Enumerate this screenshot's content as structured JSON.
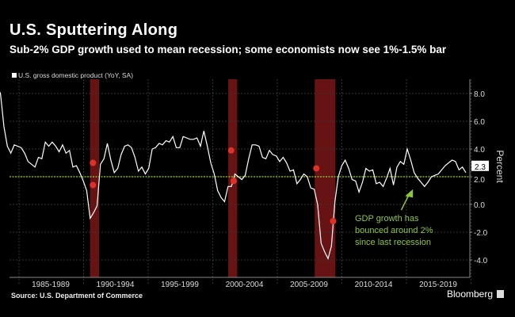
{
  "header": {
    "title": "U.S. Sputtering Along",
    "subtitle": "Sub-2% GDP growth used to mean recession; some economists now see 1%-1.5% bar"
  },
  "footer": {
    "source": "Source: U.S. Department of Commerce",
    "brand": "Bloomberg"
  },
  "colors": {
    "line": "#ffffff",
    "recession": "#8b1a1a",
    "threshold": "#9acd32",
    "annotation": "#8fc63f",
    "marker": "#e0302a"
  },
  "chart_data": {
    "type": "line",
    "legend": "U.S. gross domestic product (YoY, SA)",
    "ylabel": "Percent",
    "ylim": [
      -5,
      9.5
    ],
    "xlim": [
      1983.0,
      2020.9
    ],
    "y_ticks": [
      {
        "v": 8,
        "label": "8.0"
      },
      {
        "v": 6,
        "label": "6.0"
      },
      {
        "v": 4,
        "label": "4.0"
      },
      {
        "v": 2,
        "label": "2.0"
      },
      {
        "v": 0,
        "label": "0.0"
      },
      {
        "v": -2,
        "label": "-2.0"
      },
      {
        "v": -4,
        "label": "-4.0"
      }
    ],
    "x_ticks": [
      "1985-1989",
      "1990-1994",
      "1995-1999",
      "2000-2004",
      "2005-2009",
      "2010-2014",
      "2015-2019"
    ],
    "x_start": 1983.3,
    "x_end": 2019.6,
    "values": [
      8.5,
      8.0,
      5.6,
      4.2,
      3.7,
      4.3,
      4.2,
      4.1,
      3.7,
      3.1,
      2.9,
      2.7,
      3.4,
      3.3,
      4.5,
      4.2,
      4.5,
      4.2,
      3.8,
      4.3,
      3.7,
      3.9,
      2.7,
      2.8,
      2.3,
      1.7,
      1.0,
      -1.0,
      -0.6,
      -0.1,
      2.9,
      3.3,
      4.4,
      3.2,
      2.3,
      2.6,
      3.6,
      4.2,
      4.3,
      4.1,
      3.4,
      2.4,
      2.7,
      2.2,
      2.6,
      4.0,
      4.1,
      4.4,
      4.3,
      4.6,
      4.5,
      4.9,
      4.1,
      4.1,
      4.9,
      4.8,
      4.7,
      4.7,
      4.8,
      4.2,
      5.3,
      4.2,
      3.0,
      2.2,
      1.0,
      0.5,
      0.2,
      1.3,
      1.3,
      2.2,
      2.0,
      1.8,
      2.1,
      3.3,
      4.3,
      4.3,
      4.2,
      3.4,
      3.3,
      3.9,
      3.6,
      3.5,
      3.1,
      3.4,
      3.0,
      2.4,
      2.5,
      1.5,
      1.8,
      2.2,
      2.0,
      1.2,
      1.1,
      0.0,
      -2.8,
      -3.4,
      -3.9,
      -3.0,
      0.2,
      2.0,
      2.8,
      3.2,
      2.6,
      1.8,
      1.7,
      0.9,
      1.6,
      2.6,
      2.4,
      2.5,
      1.5,
      1.6,
      1.3,
      1.9,
      2.6,
      1.4,
      2.7,
      3.1,
      2.9,
      4.0,
      3.2,
      2.3,
      1.9,
      1.6,
      1.3,
      1.6,
      2.0,
      2.1,
      2.2,
      2.5,
      2.8,
      3.0,
      3.2,
      3.1,
      2.5,
      2.7,
      2.3
    ],
    "last_value_label": "2.3",
    "threshold": 2.0,
    "recessions": [
      [
        1990.5,
        1991.2
      ],
      [
        2001.2,
        2001.9
      ],
      [
        2007.9,
        2009.5
      ]
    ],
    "annotation": {
      "lines": [
        "GDP growth has",
        "bounced around 2%",
        "since last recession"
      ],
      "x": 2015.0,
      "y": 1.0
    }
  }
}
